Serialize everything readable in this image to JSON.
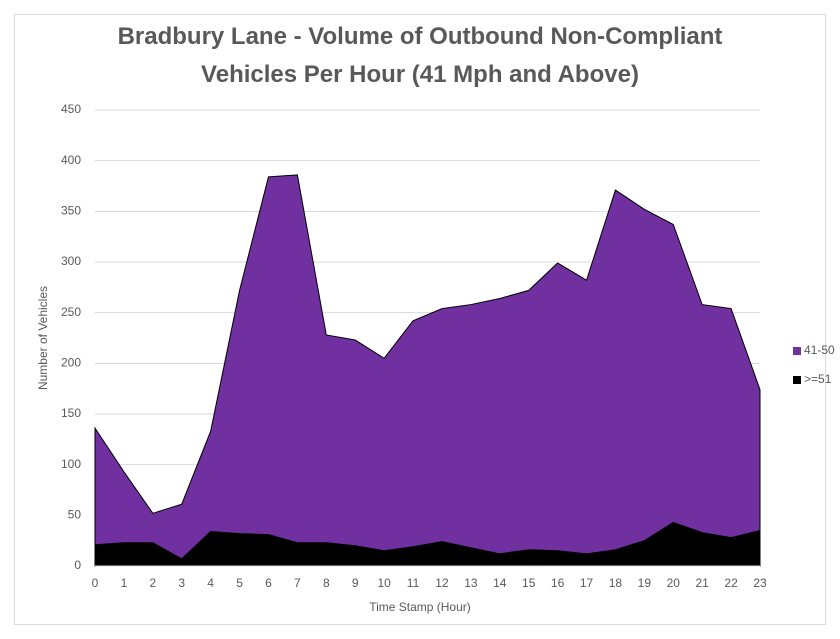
{
  "chart_data": {
    "type": "stacked_area",
    "title": "Bradbury Lane - Volume of Outbound Non-Compliant Vehicles Per Hour (41 Mph and Above)",
    "x_label": "Time Stamp (Hour)",
    "y_label": "Number of Vehicles",
    "categories": [
      0,
      1,
      2,
      3,
      4,
      5,
      6,
      7,
      8,
      9,
      10,
      11,
      12,
      13,
      14,
      15,
      16,
      17,
      18,
      19,
      20,
      21,
      22,
      23
    ],
    "series": [
      {
        "name": "41-50",
        "color": "#7030a0",
        "values": [
          115,
          70,
          29,
          54,
          99,
          240,
          353,
          363,
          205,
          203,
          190,
          223,
          230,
          240,
          252,
          256,
          284,
          270,
          355,
          327,
          294,
          225,
          226,
          139
        ]
      },
      {
        "name": ">=51",
        "color": "#000000",
        "values": [
          21,
          23,
          23,
          7,
          34,
          32,
          31,
          23,
          23,
          20,
          15,
          19,
          24,
          18,
          12,
          16,
          15,
          12,
          16,
          25,
          43,
          33,
          28,
          35
        ]
      }
    ],
    "ylim": [
      0,
      450
    ],
    "yticks": [
      0,
      50,
      100,
      150,
      200,
      250,
      300,
      350,
      400,
      450
    ],
    "grid": true,
    "legend": "right"
  }
}
